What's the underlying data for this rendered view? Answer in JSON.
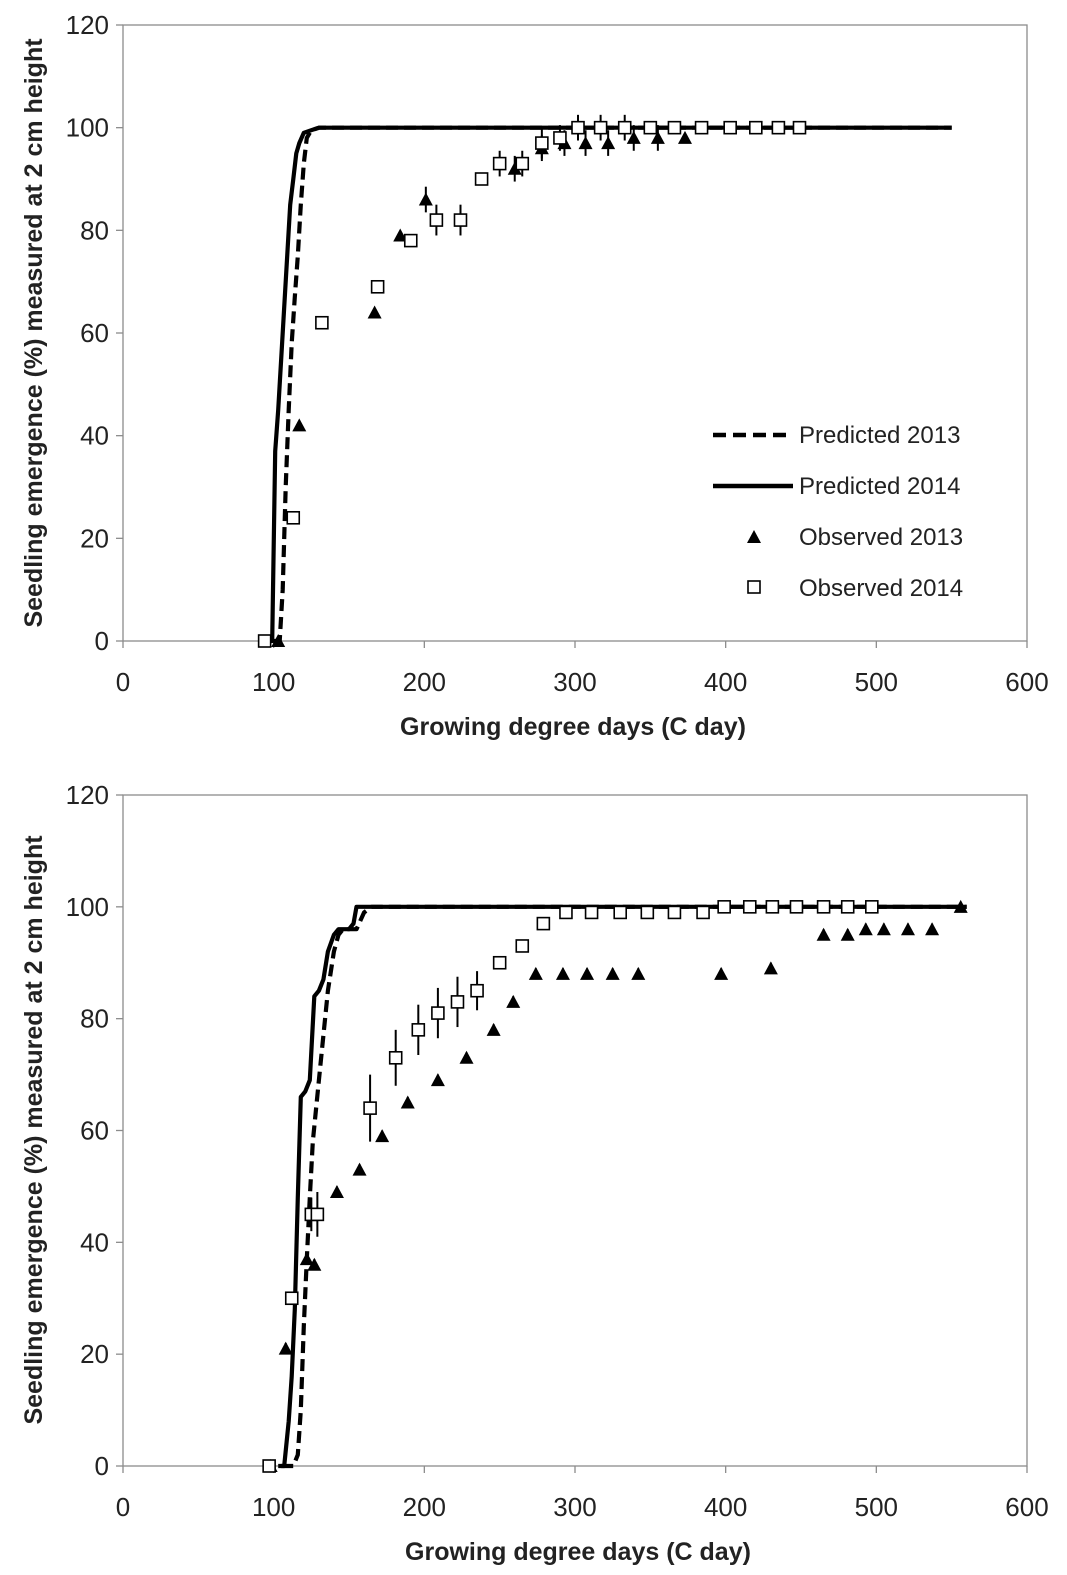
{
  "chart_data": [
    {
      "type": "line",
      "title": "",
      "xlabel": "Growing degree days (C day)",
      "ylabel": "Seedling emergence (%) measured at 2 cm height",
      "xlim": [
        0,
        600
      ],
      "ylim": [
        0,
        120
      ],
      "x_ticks": [
        "0",
        "100",
        "200",
        "300",
        "400",
        "500",
        "600"
      ],
      "y_ticks": [
        "0",
        "20",
        "40",
        "60",
        "80",
        "100",
        "120"
      ],
      "grid": false,
      "legend": {
        "position": "right-middle",
        "entries": [
          "Predicted 2013",
          "Predicted 2014",
          "Observed 2013",
          "Observed 2014"
        ]
      },
      "series": [
        {
          "name": "Predicted 2013",
          "style": "dashed",
          "color": "#000000",
          "x": [
            100,
            104,
            106,
            108,
            110,
            112,
            114,
            116,
            118,
            120,
            122,
            125,
            130,
            140,
            200,
            300,
            400,
            550
          ],
          "y": [
            0,
            0,
            10,
            30,
            45,
            58,
            67,
            75,
            85,
            93,
            98,
            99.5,
            100,
            100,
            100,
            100,
            100,
            100
          ]
        },
        {
          "name": "Predicted 2014",
          "style": "solid",
          "color": "#000000",
          "x": [
            97,
            99,
            101,
            103,
            105,
            107,
            109,
            111,
            113,
            115,
            117,
            120,
            125,
            130,
            140,
            200,
            300,
            400,
            550
          ],
          "y": [
            0,
            0,
            37,
            45,
            55,
            65,
            75,
            85,
            90,
            95,
            97,
            99,
            99.5,
            100,
            100,
            100,
            100,
            100,
            100
          ]
        },
        {
          "name": "Observed 2013",
          "marker": "triangle",
          "color": "#000000",
          "x": [
            103,
            117,
            167,
            184,
            201,
            260,
            278,
            293,
            307,
            322,
            339,
            355,
            373
          ],
          "y": [
            0,
            42,
            64,
            79,
            86,
            92,
            96,
            97,
            97,
            97,
            98,
            98,
            98
          ],
          "err": [
            0,
            0,
            0,
            0,
            2.5,
            2.5,
            2.5,
            2.5,
            2.5,
            2.5,
            2.5,
            2.5,
            0
          ]
        },
        {
          "name": "Observed 2014",
          "marker": "open-square",
          "color": "#000000",
          "x": [
            94,
            113,
            132,
            169,
            191,
            208,
            224,
            238,
            250,
            265,
            278,
            290,
            302,
            317,
            333,
            350,
            366,
            384,
            403,
            420,
            435,
            449
          ],
          "y": [
            0,
            24,
            62,
            69,
            78,
            82,
            82,
            90,
            93,
            93,
            97,
            98,
            100,
            100,
            100,
            100,
            100,
            100,
            100,
            100,
            100,
            100
          ],
          "err": [
            0,
            0,
            0,
            0,
            0,
            3,
            3,
            0,
            2.5,
            2.5,
            3,
            2.5,
            2.5,
            2.5,
            2.5,
            0,
            0,
            0,
            0,
            0,
            0,
            0
          ]
        }
      ]
    },
    {
      "type": "line",
      "title": "",
      "xlabel": "Growing degree days (C day)",
      "ylabel": "Seedling emergence (%) measured at 2 cm height",
      "xlim": [
        0,
        600
      ],
      "ylim": [
        0,
        120
      ],
      "x_ticks": [
        "0",
        "100",
        "200",
        "300",
        "400",
        "500",
        "600"
      ],
      "y_ticks": [
        "0",
        "20",
        "40",
        "60",
        "80",
        "100",
        "120"
      ],
      "grid": false,
      "legend": null,
      "series": [
        {
          "name": "Predicted 2013",
          "style": "dashed",
          "color": "#000000",
          "x": [
            105,
            113,
            116,
            118,
            120,
            122,
            124,
            126,
            130,
            133,
            136,
            140,
            143,
            146,
            150,
            155,
            160,
            165,
            170,
            200,
            300,
            400,
            500,
            560
          ],
          "y": [
            0,
            0,
            2,
            10,
            25,
            37,
            48,
            58,
            69,
            77,
            85,
            92,
            95,
            96,
            96,
            96,
            99,
            100,
            100,
            100,
            100,
            100,
            100,
            100
          ]
        },
        {
          "name": "Predicted 2014",
          "style": "solid",
          "color": "#000000",
          "x": [
            103,
            107,
            110,
            112,
            114,
            116,
            118,
            121,
            124,
            127,
            130,
            133,
            136,
            140,
            143,
            150,
            153,
            155,
            158,
            162,
            170,
            200,
            300,
            400,
            500,
            560
          ],
          "y": [
            0,
            0,
            8,
            16,
            28,
            48,
            66,
            67,
            69,
            84,
            85,
            87,
            92,
            95,
            96,
            96,
            97,
            100,
            100,
            100,
            100,
            100,
            100,
            100,
            100,
            100
          ]
        },
        {
          "name": "Observed 2013",
          "marker": "triangle",
          "color": "#000000",
          "x": [
            98,
            108,
            122,
            127,
            142,
            157,
            172,
            189,
            209,
            228,
            246,
            259,
            274,
            292,
            308,
            325,
            342,
            397,
            430,
            465,
            481,
            493,
            505,
            521,
            537,
            556
          ],
          "y": [
            0,
            21,
            37,
            36,
            49,
            53,
            59,
            65,
            69,
            73,
            78,
            83,
            88,
            88,
            88,
            88,
            88,
            88,
            89,
            95,
            95,
            96,
            96,
            96,
            96,
            100
          ],
          "err": [
            0,
            1,
            1,
            1,
            1,
            1,
            1,
            1,
            1,
            1,
            1,
            1,
            1,
            1,
            1,
            1,
            1,
            1,
            1,
            1,
            1,
            1,
            1,
            1,
            1,
            0
          ]
        },
        {
          "name": "Observed 2014",
          "marker": "open-square",
          "color": "#000000",
          "x": [
            97,
            112,
            125,
            129,
            164,
            181,
            196,
            209,
            222,
            235,
            250,
            265,
            279,
            294,
            311,
            330,
            348,
            366,
            385,
            399,
            416,
            431,
            447,
            465,
            481,
            497
          ],
          "y": [
            0,
            30,
            45,
            45,
            64,
            73,
            78,
            81,
            83,
            85,
            90,
            93,
            97,
            99,
            99,
            99,
            99,
            99,
            99,
            100,
            100,
            100,
            100,
            100,
            100,
            100
          ],
          "err": [
            0,
            0,
            3,
            4,
            6,
            5,
            4.5,
            4.5,
            4.5,
            3.5,
            0,
            0,
            0,
            0,
            0,
            0,
            0,
            0,
            0,
            0,
            0,
            0,
            0,
            0,
            0,
            0
          ]
        }
      ]
    }
  ]
}
